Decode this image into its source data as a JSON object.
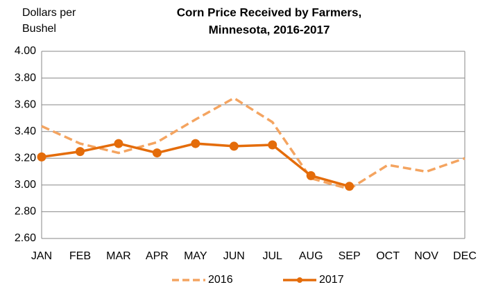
{
  "chart_data": {
    "type": "line",
    "title": "Corn Price Received by Farmers,",
    "subtitle": "Minnesota, 2016-2017",
    "y_label": [
      "Dollars per",
      "Bushel"
    ],
    "categories": [
      "JAN",
      "FEB",
      "MAR",
      "APR",
      "MAY",
      "JUN",
      "JUL",
      "AUG",
      "SEP",
      "OCT",
      "NOV",
      "DEC"
    ],
    "series": [
      {
        "name": "2016",
        "color": "#f4a460",
        "dashed": true,
        "markers": false,
        "values": [
          3.44,
          3.31,
          3.24,
          3.32,
          3.49,
          3.65,
          3.47,
          3.05,
          2.97,
          3.15,
          3.1,
          3.2
        ]
      },
      {
        "name": "2017",
        "color": "#e46c0a",
        "dashed": false,
        "markers": true,
        "values": [
          3.21,
          3.25,
          3.31,
          3.24,
          3.31,
          3.29,
          3.3,
          3.07,
          2.99,
          null,
          null,
          null
        ]
      }
    ],
    "ylim": [
      2.6,
      4.0
    ],
    "yticks": [
      {
        "value": 2.6,
        "label": "2.60"
      },
      {
        "value": 2.8,
        "label": "2.80"
      },
      {
        "value": 3.0,
        "label": "3.00"
      },
      {
        "value": 3.2,
        "label": "3.20"
      },
      {
        "value": 3.4,
        "label": "3.40"
      },
      {
        "value": 3.6,
        "label": "3.60"
      },
      {
        "value": 3.8,
        "label": "3.80"
      },
      {
        "value": 4.0,
        "label": "4.00"
      }
    ],
    "grid": true,
    "legend": "bottom"
  }
}
